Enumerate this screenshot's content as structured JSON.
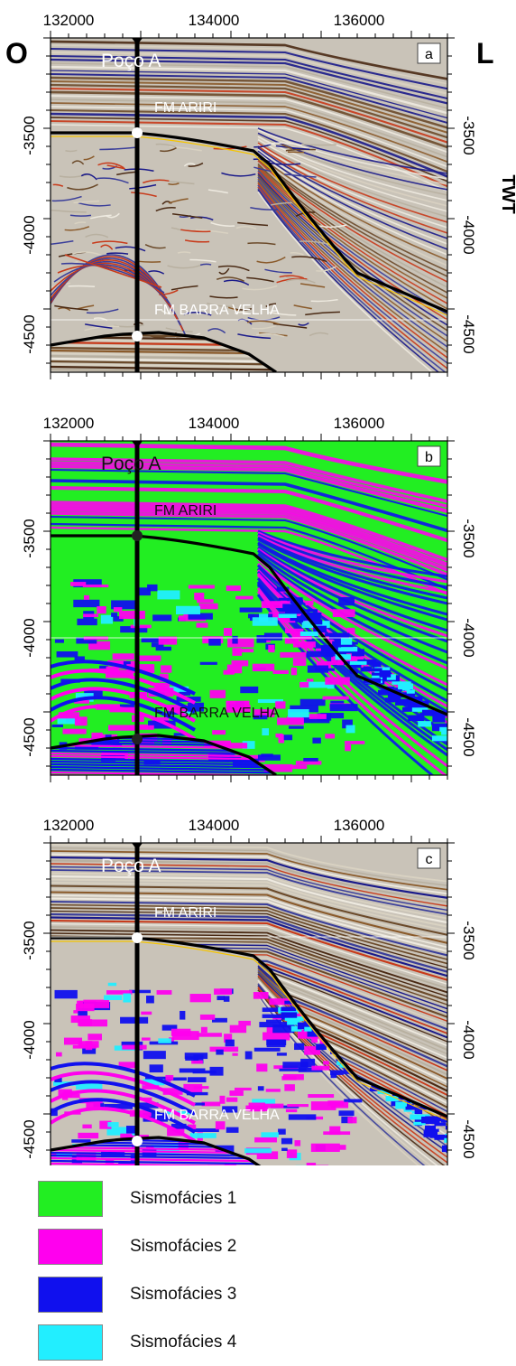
{
  "orientation": {
    "west": "O",
    "east": "L"
  },
  "axis_title_right": "TWT",
  "x_ticks": [
    "132000",
    "134000",
    "136000"
  ],
  "y_ticks": [
    "-3500",
    "-4000",
    "-4500"
  ],
  "panels": [
    {
      "letter": "a",
      "well": "Poço A",
      "top_formation": "FM ARIRI",
      "base_formation": "FM BARRA VELHA",
      "style": "seismic"
    },
    {
      "letter": "b",
      "well": "Poço A",
      "top_formation": "FM ARIRI",
      "base_formation": "FM BARRA VELHA",
      "style": "facies"
    },
    {
      "letter": "c",
      "well": "Poço A",
      "top_formation": "FM ARIRI",
      "base_formation": "FM BARRA VELHA",
      "style": "mixed"
    }
  ],
  "legend": [
    {
      "label": "Sismofácies 1",
      "color": "#22ee22"
    },
    {
      "label": "Sismofácies 2",
      "color": "#ff00ee"
    },
    {
      "label": "Sismofácies 3",
      "color": "#1010ee"
    },
    {
      "label": "Sismofácies 4",
      "color": "#22eeff"
    }
  ],
  "colors": {
    "seismic_bg": "#c9c3b8",
    "horizon": "#000000",
    "well": "#000000"
  }
}
